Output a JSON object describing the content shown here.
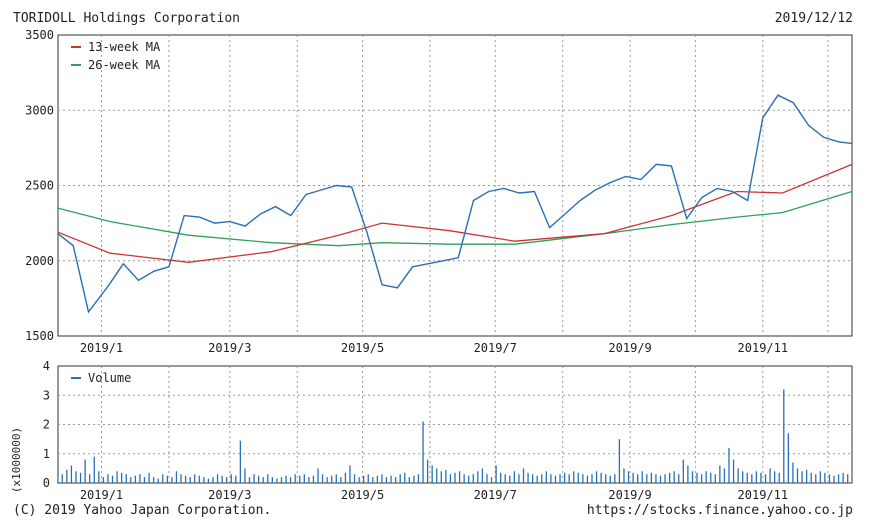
{
  "header": {
    "title": "TORIDOLL Holdings Corporation",
    "date": "2019/12/12"
  },
  "footer": {
    "copyright": "(C) 2019 Yahoo Japan Corporation.",
    "url": "https://stocks.finance.yahoo.co.jp"
  },
  "colors": {
    "price": "#2a6fb3",
    "ma13": "#cc3333",
    "ma26": "#2ea05a",
    "volume": "#2a6fb3",
    "grid": "#9a9a9a"
  },
  "chart_data": [
    {
      "type": "line",
      "title": "TORIDOLL Holdings Corporation",
      "ylim": [
        1500,
        3500
      ],
      "yticks": [
        1500,
        2000,
        2500,
        3000,
        3500
      ],
      "x_labels": [
        "2019/1",
        "2019/3",
        "2019/5",
        "2019/7",
        "2019/9",
        "2019/11"
      ],
      "grid": true,
      "legend": {
        "position": "top-left",
        "entries": [
          "13-week MA",
          "26-week MA"
        ]
      },
      "series": [
        {
          "name": "",
          "role": "price",
          "x": [
            "2018-12-12",
            "2018-12-19",
            "2018-12-26",
            "2019-01-04",
            "2019-01-11",
            "2019-01-18",
            "2019-01-25",
            "2019-02-01",
            "2019-02-08",
            "2019-02-15",
            "2019-02-22",
            "2019-03-01",
            "2019-03-08",
            "2019-03-15",
            "2019-03-22",
            "2019-03-29",
            "2019-04-05",
            "2019-04-12",
            "2019-04-19",
            "2019-04-26",
            "2019-05-03",
            "2019-05-10",
            "2019-05-17",
            "2019-05-24",
            "2019-05-31",
            "2019-06-07",
            "2019-06-14",
            "2019-06-21",
            "2019-06-28",
            "2019-07-05",
            "2019-07-12",
            "2019-07-19",
            "2019-07-26",
            "2019-08-02",
            "2019-08-09",
            "2019-08-16",
            "2019-08-23",
            "2019-08-30",
            "2019-09-06",
            "2019-09-13",
            "2019-09-20",
            "2019-09-27",
            "2019-10-04",
            "2019-10-11",
            "2019-10-18",
            "2019-10-25",
            "2019-11-01",
            "2019-11-08",
            "2019-11-15",
            "2019-11-22",
            "2019-11-29",
            "2019-12-06",
            "2019-12-12"
          ],
          "values": [
            2180,
            2100,
            1660,
            1830,
            1980,
            1870,
            1930,
            1960,
            2300,
            2290,
            2250,
            2260,
            2230,
            2310,
            2360,
            2300,
            2440,
            2470,
            2500,
            2490,
            2190,
            1840,
            1820,
            1960,
            1980,
            2000,
            2020,
            2400,
            2460,
            2480,
            2450,
            2460,
            2220,
            2310,
            2400,
            2470,
            2520,
            2560,
            2540,
            2640,
            2630,
            2280,
            2420,
            2480,
            2460,
            2400,
            2950,
            3100,
            3050,
            2900,
            2820,
            2790,
            2780
          ]
        },
        {
          "name": "13-week MA",
          "role": "ma13",
          "x": [
            "2018-12-12",
            "2019-01-05",
            "2019-02-10",
            "2019-03-20",
            "2019-04-20",
            "2019-05-10",
            "2019-06-10",
            "2019-07-10",
            "2019-08-20",
            "2019-09-20",
            "2019-10-20",
            "2019-11-10",
            "2019-12-12"
          ],
          "values": [
            2190,
            2050,
            1990,
            2060,
            2170,
            2250,
            2200,
            2130,
            2180,
            2300,
            2460,
            2450,
            2640
          ]
        },
        {
          "name": "26-week MA",
          "role": "ma26",
          "x": [
            "2018-12-12",
            "2019-01-05",
            "2019-02-10",
            "2019-03-20",
            "2019-04-20",
            "2019-05-10",
            "2019-06-10",
            "2019-07-10",
            "2019-08-20",
            "2019-09-20",
            "2019-10-20",
            "2019-11-10",
            "2019-12-12"
          ],
          "values": [
            2350,
            2260,
            2170,
            2120,
            2100,
            2120,
            2110,
            2110,
            2180,
            2240,
            2290,
            2320,
            2460
          ]
        }
      ]
    },
    {
      "type": "bar",
      "ylim": [
        0,
        4
      ],
      "yticks": [
        0,
        1,
        2,
        3,
        4
      ],
      "ylabel": "(x1000000)",
      "x_labels": [
        "2019/1",
        "2019/3",
        "2019/5",
        "2019/7",
        "2019/9",
        "2019/11"
      ],
      "grid": true,
      "legend": {
        "position": "top-left",
        "entries": [
          "Volume"
        ]
      },
      "series": [
        {
          "name": "Volume",
          "values": [
            0.3,
            0.45,
            0.6,
            0.4,
            0.35,
            0.8,
            0.3,
            0.9,
            0.4,
            0.2,
            0.3,
            0.25,
            0.4,
            0.35,
            0.3,
            0.2,
            0.25,
            0.3,
            0.2,
            0.35,
            0.2,
            0.15,
            0.3,
            0.25,
            0.2,
            0.4,
            0.3,
            0.25,
            0.2,
            0.3,
            0.25,
            0.2,
            0.15,
            0.2,
            0.3,
            0.25,
            0.2,
            0.3,
            0.25,
            1.45,
            0.5,
            0.2,
            0.3,
            0.25,
            0.2,
            0.3,
            0.2,
            0.15,
            0.2,
            0.25,
            0.2,
            0.3,
            0.25,
            0.3,
            0.2,
            0.25,
            0.5,
            0.3,
            0.2,
            0.25,
            0.3,
            0.2,
            0.35,
            0.6,
            0.3,
            0.2,
            0.25,
            0.3,
            0.2,
            0.25,
            0.3,
            0.2,
            0.25,
            0.2,
            0.3,
            0.35,
            0.2,
            0.25,
            0.3,
            2.1,
            0.8,
            0.6,
            0.5,
            0.4,
            0.45,
            0.3,
            0.35,
            0.4,
            0.3,
            0.25,
            0.3,
            0.4,
            0.5,
            0.3,
            0.2,
            0.6,
            0.35,
            0.3,
            0.25,
            0.4,
            0.3,
            0.5,
            0.35,
            0.3,
            0.25,
            0.3,
            0.4,
            0.3,
            0.25,
            0.3,
            0.35,
            0.3,
            0.4,
            0.35,
            0.3,
            0.25,
            0.3,
            0.4,
            0.35,
            0.3,
            0.25,
            0.3,
            1.5,
            0.5,
            0.4,
            0.35,
            0.3,
            0.4,
            0.3,
            0.35,
            0.3,
            0.25,
            0.3,
            0.35,
            0.4,
            0.3,
            0.8,
            0.6,
            0.4,
            0.35,
            0.3,
            0.4,
            0.35,
            0.3,
            0.6,
            0.5,
            1.2,
            0.8,
            0.5,
            0.4,
            0.35,
            0.3,
            0.4,
            0.35,
            0.3,
            0.5,
            0.4,
            0.35,
            3.2,
            1.7,
            0.7,
            0.5,
            0.4,
            0.45,
            0.35,
            0.3,
            0.4,
            0.35,
            0.3,
            0.25,
            0.3,
            0.35,
            0.3
          ]
        }
      ]
    }
  ]
}
